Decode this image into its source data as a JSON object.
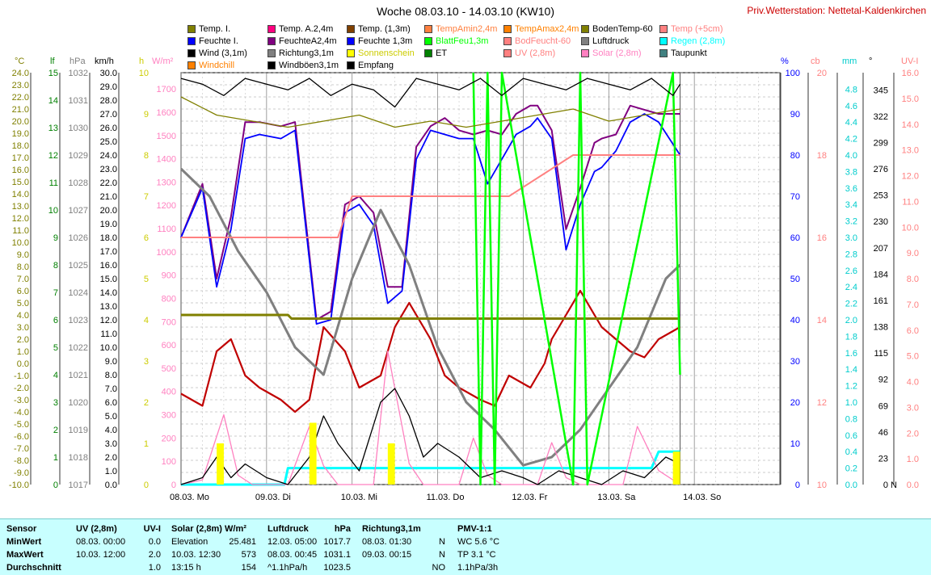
{
  "header": {
    "title": "Woche 08.03.10 - 14.03.10 (KW10)",
    "station": "Priv.Wetterstation: Nettetal-Kaldenkirchen"
  },
  "legend": [
    {
      "label": "Temp. I.",
      "color": "#808000"
    },
    {
      "label": "Temp. A.2,4m",
      "color": "#ff0080"
    },
    {
      "label": "Temp. (1,3m)",
      "color": "#804000"
    },
    {
      "label": "TempAmin2,4m",
      "color": "#ff8040"
    },
    {
      "label": "TempAmax2,4m",
      "color": "#ff8000"
    },
    {
      "label": "BodenTemp-60",
      "color": "#808000"
    },
    {
      "label": "Temp (+5cm)",
      "color": "#ff8080"
    },
    {
      "label": "Feuchte I.",
      "color": "#0000ff"
    },
    {
      "label": "FeuchteA2,4m",
      "color": "#800080"
    },
    {
      "label": "Feuchte 1,3m",
      "color": "#0000ff"
    },
    {
      "label": "BlattFeu1,3m",
      "color": "#00ff00"
    },
    {
      "label": "BodFeucht-60",
      "color": "#ff8080"
    },
    {
      "label": "Luftdruck",
      "color": "#808080"
    },
    {
      "label": "Regen (2,8m)",
      "color": "#00ffff"
    },
    {
      "label": "Wind (3,1m)",
      "color": "#000000"
    },
    {
      "label": "Richtung3,1m",
      "color": "#808080"
    },
    {
      "label": "Sonnenschein",
      "color": "#ffff00"
    },
    {
      "label": "ET",
      "color": "#008000"
    },
    {
      "label": "UV (2,8m)",
      "color": "#ff8080"
    },
    {
      "label": "Solar (2,8m)",
      "color": "#ff80c0"
    },
    {
      "label": "Taupunkt",
      "color": "#408080"
    },
    {
      "label": "Windchill",
      "color": "#ff8000"
    },
    {
      "label": "Windböen3,1m",
      "color": "#000000"
    },
    {
      "label": "Empfang",
      "color": "#000000"
    }
  ],
  "axes": {
    "temp_unit": "°C",
    "lf_unit": "lf",
    "hpa_unit": "hPa",
    "kmh_unit": "km/h",
    "h_unit": "h",
    "wm2_unit": "W/m²",
    "pct_unit": "%",
    "cb_unit": "cb",
    "mm_unit": "mm",
    "deg_unit": "°",
    "uvi_unit": "UV-I",
    "temp_ticks": [
      "24.0",
      "23.0",
      "22.0",
      "21.0",
      "20.0",
      "19.0",
      "18.0",
      "17.0",
      "16.0",
      "15.0",
      "14.0",
      "13.0",
      "12.0",
      "11.0",
      "10.0",
      "9.0",
      "8.0",
      "7.0",
      "6.0",
      "5.0",
      "4.0",
      "3.0",
      "2.0",
      "1.0",
      "0.0",
      "-1.0",
      "-2.0",
      "-3.0",
      "-4.0",
      "-5.0",
      "-6.0",
      "-7.0",
      "-8.0",
      "-9.0",
      "-10.0"
    ],
    "lf_ticks": [
      "15",
      "14",
      "13",
      "12",
      "11",
      "10",
      "9",
      "8",
      "7",
      "6",
      "5",
      "4",
      "3",
      "2",
      "1",
      "0"
    ],
    "hpa_ticks": [
      "1032",
      "1031",
      "1030",
      "1029",
      "1028",
      "1027",
      "1026",
      "1025",
      "1024",
      "1023",
      "1022",
      "1021",
      "1020",
      "1019",
      "1018",
      "1017"
    ],
    "kmh_ticks": [
      "30.0",
      "29.0",
      "28.0",
      "27.0",
      "26.0",
      "25.0",
      "24.0",
      "23.0",
      "22.0",
      "21.0",
      "20.0",
      "19.0",
      "18.0",
      "17.0",
      "16.0",
      "15.0",
      "14.0",
      "13.0",
      "12.0",
      "11.0",
      "10.0",
      "9.0",
      "8.0",
      "7.0",
      "6.0",
      "5.0",
      "4.0",
      "3.0",
      "2.0",
      "1.0",
      "0.0"
    ],
    "h_ticks": [
      "10",
      "9",
      "8",
      "7",
      "6",
      "5",
      "4",
      "3",
      "2",
      "1",
      "0"
    ],
    "wm2_ticks": [
      "1700",
      "1600",
      "1500",
      "1400",
      "1300",
      "1200",
      "1100",
      "1000",
      "900",
      "800",
      "700",
      "600",
      "500",
      "400",
      "300",
      "200",
      "100",
      "0"
    ],
    "pct_ticks": [
      "100",
      "90",
      "80",
      "70",
      "60",
      "50",
      "40",
      "30",
      "20",
      "10",
      "0"
    ],
    "cb_ticks": [
      "20",
      "18",
      "16",
      "14",
      "12",
      "10"
    ],
    "mm_ticks": [
      "4.8",
      "4.6",
      "4.4",
      "4.2",
      "4.0",
      "3.8",
      "3.6",
      "3.4",
      "3.2",
      "3.0",
      "2.8",
      "2.6",
      "2.4",
      "2.2",
      "2.0",
      "1.8",
      "1.6",
      "1.4",
      "1.2",
      "1.0",
      "0.8",
      "0.6",
      "0.4",
      "0.2",
      "0.0"
    ],
    "deg_ticks": [
      "345",
      "322",
      "299",
      "276",
      "253",
      "230",
      "207",
      "184",
      "161",
      "138",
      "115",
      "92",
      "69",
      "46",
      "23",
      "0"
    ],
    "deg_north": "N",
    "uvi_ticks": [
      "16.0",
      "15.0",
      "14.0",
      "13.0",
      "12.0",
      "11.0",
      "10.0",
      "9.0",
      "8.0",
      "7.0",
      "6.0",
      "5.0",
      "4.0",
      "3.0",
      "2.0",
      "1.0",
      "0.0"
    ],
    "x_ticks": [
      "08.03. Mo",
      "09.03. Di",
      "10.03. Mi",
      "11.03. Do",
      "12.03. Fr",
      "13.03. Sa",
      "14.03. So"
    ]
  },
  "chart_data": {
    "type": "line",
    "title": "Woche 08.03.10 - 14.03.10 (KW10)",
    "x_unit": "hours since 08.03. 00:00",
    "xlim": [
      0,
      168
    ],
    "series": [
      {
        "name": "Feuchte A2,4m",
        "color": "#800080",
        "axis": "%",
        "x": [
          0,
          6,
          10,
          14,
          18,
          22,
          28,
          32,
          38,
          42,
          46,
          50,
          54,
          58,
          62,
          66,
          70,
          74,
          78,
          82,
          86,
          90,
          94,
          98,
          100,
          104,
          108,
          112,
          116,
          118,
          122,
          126,
          130,
          134,
          140
        ],
        "y": [
          60,
          73,
          50,
          65,
          88,
          88,
          87,
          88,
          40,
          42,
          68,
          70,
          66,
          48,
          48,
          82,
          87,
          89,
          86,
          85,
          86,
          85,
          90,
          92,
          92,
          86,
          62,
          72,
          83,
          84,
          85,
          92,
          91,
          90,
          90
        ]
      },
      {
        "name": "Feuchte 1,3m",
        "color": "#0000ff",
        "axis": "%",
        "x": [
          0,
          6,
          10,
          14,
          18,
          22,
          28,
          32,
          38,
          42,
          46,
          50,
          54,
          58,
          62,
          66,
          70,
          74,
          78,
          82,
          86,
          90,
          94,
          98,
          100,
          104,
          108,
          112,
          116,
          118,
          122,
          126,
          130,
          134,
          140
        ],
        "y": [
          60,
          72,
          48,
          62,
          84,
          85,
          84,
          86,
          39,
          40,
          66,
          68,
          63,
          44,
          47,
          79,
          86,
          85,
          84,
          84,
          73,
          79,
          85,
          87,
          89,
          84,
          57,
          68,
          76,
          77,
          81,
          88,
          90,
          88,
          80
        ]
      },
      {
        "name": "Temp (1,3m)",
        "color": "#c00000",
        "axis": "°C",
        "x": [
          0,
          6,
          10,
          14,
          18,
          22,
          28,
          32,
          36,
          40,
          46,
          50,
          56,
          60,
          64,
          70,
          74,
          78,
          84,
          88,
          92,
          98,
          102,
          104,
          108,
          112,
          116,
          118,
          122,
          126,
          130,
          134,
          140
        ],
        "y": [
          -2.5,
          -3.5,
          1,
          2,
          -1,
          -2,
          -3,
          -4,
          -3,
          3,
          1,
          -2,
          -1,
          3,
          5,
          2,
          -1,
          -2,
          -3,
          -3.5,
          -1,
          -2,
          0,
          2,
          4,
          6,
          4,
          3,
          2,
          1,
          0.5,
          2,
          3
        ]
      },
      {
        "name": "Luftdruck",
        "color": "#808080",
        "axis": "hPa",
        "x": [
          0,
          8,
          16,
          24,
          32,
          40,
          48,
          56,
          64,
          72,
          80,
          88,
          96,
          104,
          112,
          120,
          128,
          136,
          140
        ],
        "y": [
          1028.5,
          1027.5,
          1025.5,
          1024,
          1022,
          1021,
          1024.5,
          1027,
          1025,
          1022,
          1020,
          1019,
          1017.7,
          1018,
          1019,
          1020.5,
          1022,
          1024.5,
          1025
        ]
      },
      {
        "name": "BodenTemp-60",
        "color": "#808000",
        "axis": "°C",
        "x": [
          0,
          30,
          31,
          140
        ],
        "y": [
          4.0,
          4.0,
          3.7,
          3.7
        ]
      },
      {
        "name": "BodFeucht-60",
        "color": "#ff8080",
        "axis": "cb",
        "x": [
          0,
          40,
          44,
          48,
          50,
          90,
          92,
          110,
          112,
          140
        ],
        "y": [
          16,
          16,
          16,
          17,
          17,
          17,
          17,
          18,
          18,
          18
        ]
      },
      {
        "name": "Regen (2,8m)",
        "color": "#00ffff",
        "axis": "mm",
        "x": [
          0,
          29,
          30,
          132,
          134,
          140
        ],
        "y": [
          0,
          0,
          0.2,
          0.2,
          0.4,
          0.4
        ]
      },
      {
        "name": "Solar (2,8m)",
        "color": "#ff80c0",
        "axis": "W/m²",
        "x": [
          0,
          6,
          12,
          16,
          20,
          30,
          36,
          40,
          44,
          54,
          58,
          64,
          68,
          78,
          82,
          86,
          90,
          100,
          104,
          108,
          112,
          124,
          128,
          134,
          140
        ],
        "y": [
          0,
          20,
          300,
          40,
          0,
          0,
          250,
          80,
          0,
          0,
          573,
          90,
          0,
          0,
          200,
          40,
          0,
          0,
          180,
          30,
          0,
          0,
          250,
          60,
          0
        ]
      },
      {
        "name": "Wind (3,1m)",
        "color": "#000000",
        "axis": "km/h",
        "x": [
          0,
          6,
          10,
          14,
          18,
          24,
          30,
          36,
          40,
          44,
          50,
          56,
          60,
          64,
          68,
          72,
          78,
          84,
          90,
          96,
          100,
          106,
          112,
          118,
          124,
          130,
          136,
          140
        ],
        "y": [
          0,
          0.5,
          2,
          0.5,
          1.5,
          0.5,
          0,
          2,
          5,
          3,
          1,
          6,
          7,
          5,
          2,
          3,
          2,
          0.5,
          1,
          0.5,
          0,
          1,
          0.5,
          0,
          1,
          0.5,
          2,
          1.5
        ]
      },
      {
        "name": "Sonnenschein",
        "color": "#ffff00",
        "axis": "h",
        "x": [
          10,
          12,
          36,
          38,
          58,
          60,
          138,
          140
        ],
        "y": [
          1,
          0,
          1.5,
          0,
          1,
          0,
          0.8,
          0
        ]
      },
      {
        "name": "BlattFeu1,3m",
        "color": "#00ff00",
        "axis": "lf",
        "x": [
          82,
          84,
          86,
          88,
          90,
          110,
          112,
          114,
          138,
          140
        ],
        "y": [
          15,
          0,
          15,
          0,
          15,
          0,
          15,
          0,
          15,
          4
        ]
      },
      {
        "name": "Temp. I.",
        "color": "#808000",
        "axis": "°C",
        "x": [
          0,
          10,
          20,
          30,
          40,
          50,
          60,
          70,
          80,
          90,
          100,
          110,
          120,
          130,
          140
        ],
        "y": [
          22,
          20.5,
          20,
          19.5,
          20,
          20.5,
          19.5,
          20,
          19.5,
          20,
          20.5,
          21,
          20,
          20.5,
          21
        ]
      },
      {
        "name": "Richtung3,1m",
        "color": "#000000",
        "axis": "°",
        "x": [
          0,
          6,
          12,
          18,
          24,
          30,
          36,
          42,
          48,
          54,
          60,
          66,
          72,
          78,
          84,
          90,
          96,
          102,
          108,
          114,
          120,
          126,
          132,
          138,
          140
        ],
        "y": [
          355,
          350,
          340,
          355,
          350,
          345,
          355,
          340,
          350,
          345,
          330,
          355,
          350,
          345,
          355,
          340,
          355,
          350,
          345,
          355,
          350,
          345,
          355,
          340,
          350
        ]
      }
    ]
  },
  "bottom_table": {
    "col_sensor": {
      "header": "Sensor",
      "rows": [
        "MinWert",
        "MaxWert",
        "Durchschnitt"
      ]
    },
    "col_uv": {
      "header": "UV (2,8m)",
      "unit": "UV-I",
      "rows": [
        [
          "08.03.  00:00",
          "0.0"
        ],
        [
          "10.03.  12:00",
          "2.0"
        ],
        [
          "",
          "1.0"
        ]
      ]
    },
    "col_solar": {
      "header": "Solar (2,8m) W/m²",
      "rows": [
        [
          "Elevation",
          "25.481"
        ],
        [
          "10.03.  12:30",
          "573"
        ],
        [
          "13:15 h",
          "154"
        ]
      ]
    },
    "col_luft": {
      "header": "Luftdruck",
      "unit": "hPa",
      "rows": [
        [
          "12.03.  05:00",
          "1017.7"
        ],
        [
          "08.03.  00:45",
          "1031.1"
        ],
        [
          "^1.1hPa/h",
          "1023.5"
        ]
      ]
    },
    "col_richt": {
      "header": "Richtung3,1m",
      "rows": [
        [
          "08.03.  01:30",
          "N"
        ],
        [
          "09.03.  00:15",
          "N"
        ],
        [
          "",
          "NO"
        ]
      ]
    },
    "col_pmv": {
      "header": "PMV-1:1",
      "rows": [
        "WC 5.6 °C",
        "TP 3.1 °C",
        "1.1hPa/3h"
      ]
    }
  }
}
